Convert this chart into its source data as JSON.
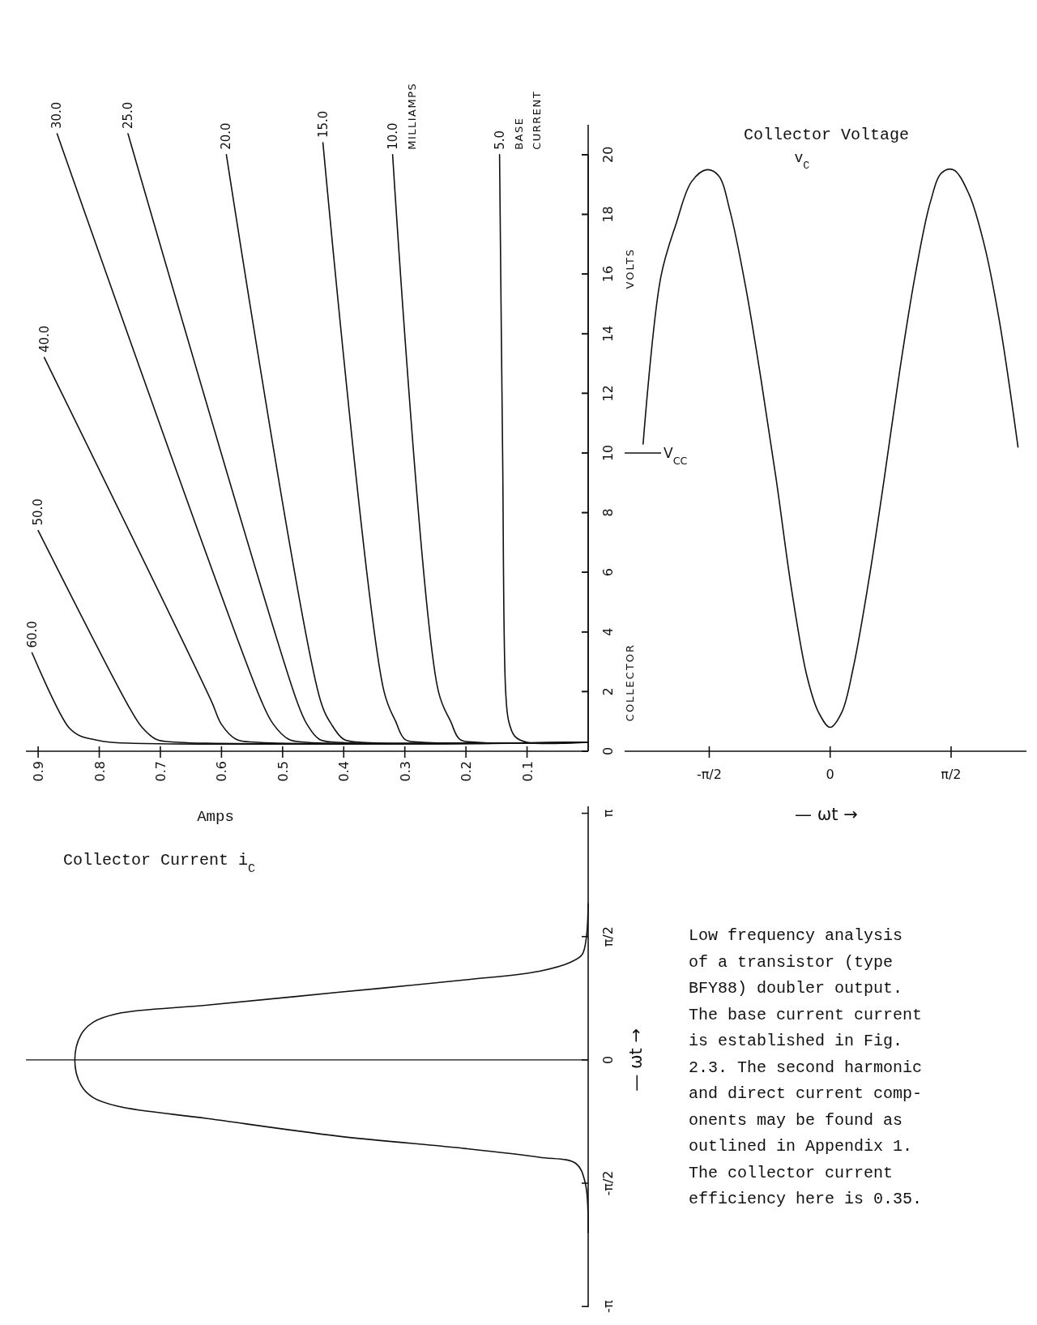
{
  "chart_data": [
    {
      "type": "line",
      "xlabel": "Amps",
      "ylabel": "COLLECTOR VOLTS",
      "xlim": [
        0.92,
        0
      ],
      "ylim": [
        0,
        21
      ],
      "xticks": [
        0.9,
        0.8,
        0.7,
        0.6,
        0.5,
        0.4,
        0.3,
        0.2,
        0.1
      ],
      "yticks": [
        0,
        2,
        4,
        6,
        8,
        10,
        12,
        14,
        16,
        18,
        20
      ],
      "annotations": [
        "MILLIAMPS",
        "BASE CURRENT"
      ],
      "series": [
        {
          "name": "5.0",
          "color": "#111111",
          "x": [
            0.145,
            0.14,
            0.135,
            0.13,
            0.12,
            0.1,
            0
          ],
          "values": [
            20,
            10,
            2,
            1,
            0.5,
            0.3,
            0.3
          ]
        },
        {
          "name": "10.0",
          "color": "#111111",
          "x": [
            0.32,
            0.245,
            0.225,
            0.21,
            0.18,
            0
          ],
          "values": [
            20,
            2,
            1,
            0.4,
            0.3,
            0.3
          ]
        },
        {
          "name": "15.0",
          "color": "#111111",
          "x": [
            0.434,
            0.334,
            0.315,
            0.3,
            0.27,
            0
          ],
          "values": [
            20.4,
            2,
            1,
            0.4,
            0.3,
            0.3
          ]
        },
        {
          "name": "20.0",
          "color": "#111111",
          "x": [
            0.592,
            0.438,
            0.42,
            0.4,
            0.37,
            0
          ],
          "values": [
            20,
            1.7,
            0.9,
            0.4,
            0.3,
            0.3
          ]
        },
        {
          "name": "25.0",
          "color": "#111111",
          "x": [
            0.753,
            0.477,
            0.46,
            0.44,
            0.41,
            0
          ],
          "values": [
            20.7,
            1.7,
            0.9,
            0.4,
            0.3,
            0.3
          ]
        },
        {
          "name": "30.0",
          "color": "#111111",
          "x": [
            0.869,
            0.535,
            0.515,
            0.49,
            0.46,
            0
          ],
          "values": [
            20.7,
            1.7,
            0.9,
            0.4,
            0.3,
            0.3
          ]
        },
        {
          "name": "40.0",
          "color": "#111111",
          "x": [
            0.89,
            0.617,
            0.6,
            0.576,
            0.54,
            0
          ],
          "values": [
            13.2,
            1.7,
            0.9,
            0.4,
            0.3,
            0.3
          ]
        },
        {
          "name": "50.0",
          "color": "#111111",
          "x": [
            0.9,
            0.749,
            0.73,
            0.707,
            0.67,
            0
          ],
          "values": [
            7.4,
            1.4,
            0.8,
            0.4,
            0.3,
            0.3
          ]
        },
        {
          "name": "60.0",
          "color": "#111111",
          "x": [
            0.91,
            0.85,
            0.83,
            0.81,
            0.78,
            0
          ],
          "values": [
            3.3,
            0.8,
            0.5,
            0.4,
            0.3,
            0.3
          ]
        }
      ]
    },
    {
      "type": "line",
      "title": "Collector Voltage",
      "subtitle": "v$_{C}$",
      "xlabel": "— ωt →",
      "xlim": [
        -2.67,
        2.55
      ],
      "ylim": [
        0,
        20
      ],
      "tick_labels": "x",
      "yticks": [
        0,
        2,
        4,
        6,
        8,
        10,
        12,
        14,
        16,
        18,
        20
      ],
      "xticks": [
        {
          "value": -1.5708,
          "label": "-π/2"
        },
        0,
        {
          "value": 1.5708,
          "label": "π/2"
        }
      ],
      "ref_lines": [
        {
          "axis": "y",
          "value": 10,
          "label": "V$_{CC}$"
        }
      ],
      "series": [
        {
          "color": "#111111",
          "x": [
            -2.43,
            -2.2,
            -2.0,
            -1.8,
            -1.6,
            -1.45,
            -1.3,
            -1.1,
            -0.9,
            -0.7,
            -0.5,
            -0.3,
            -0.15,
            0,
            0.15,
            0.3,
            0.5,
            0.7,
            0.9,
            1.1,
            1.3,
            1.45,
            1.6,
            1.8,
            2.0,
            2.2,
            2.44
          ],
          "values": [
            10.3,
            15.9,
            17.7,
            19.1,
            19.5,
            19.3,
            18.1,
            15.6,
            12.5,
            9.1,
            5.4,
            2.5,
            1.3,
            0.8,
            1.3,
            2.8,
            5.7,
            9.1,
            12.7,
            15.9,
            18.4,
            19.4,
            19.5,
            18.7,
            17,
            14.4,
            10.2
          ]
        }
      ]
    },
    {
      "type": "line",
      "title": "Collector Current i$_{C}$",
      "ylabel": "— ωt →",
      "xlim": [
        0.92,
        0
      ],
      "ylim": [
        -3.15,
        3.23
      ],
      "tick_labels": "y",
      "yticks": [
        {
          "value": 3.1416,
          "label": "π"
        },
        {
          "value": 1.5708,
          "label": "π/2"
        },
        0,
        {
          "value": -1.5708,
          "label": "-π/2"
        },
        {
          "value": -3.1416,
          "label": "-π"
        }
      ],
      "ref_lines": [
        {
          "axis": "y",
          "value": 0
        }
      ],
      "annotations": [
        "Low frequency analysis\nof a transistor (type\nBFY88) doubler output.\nThe base current current\nis established in Fig.\n2.3.  The second harmonic\nand direct current comp-\nonents may be found as\noutlined in Appendix 1.\nThe collector current\nefficiency here is 0.35."
      ],
      "series": [
        {
          "color": "#111111",
          "x": [
            0,
            0.003,
            0.01,
            0.03,
            0.08,
            0.2,
            0.41,
            0.62,
            0.77,
            0.81,
            0.83,
            0.84,
            0.83,
            0.81,
            0.77,
            0.62,
            0.41,
            0.2,
            0.08,
            0.02,
            0.005,
            0
          ],
          "values": [
            1.99,
            1.56,
            1.34,
            1.24,
            1.13,
            1.02,
            0.86,
            0.7,
            0.59,
            0.48,
            0.32,
            0,
            -0.32,
            -0.48,
            -0.59,
            -0.75,
            -0.97,
            -1.13,
            -1.24,
            -1.32,
            -1.56,
            -2.2
          ]
        }
      ]
    }
  ]
}
